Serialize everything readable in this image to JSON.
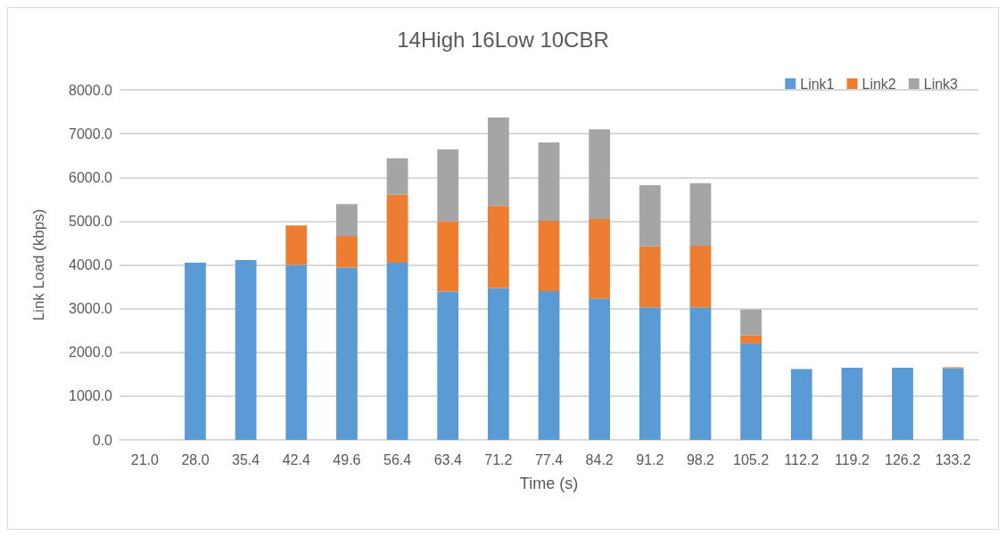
{
  "chart_data": {
    "type": "bar",
    "title": "14High 16Low 10CBR",
    "xlabel": "Time (s)",
    "ylabel": "Link Load (kbps)",
    "categories": [
      "21.0",
      "28.0",
      "35.4",
      "42.4",
      "49.6",
      "56.4",
      "63.4",
      "71.2",
      "77.4",
      "84.2",
      "91.2",
      "98.2",
      "105.2",
      "112.2",
      "119.2",
      "126.2",
      "133.2"
    ],
    "series": [
      {
        "name": "Link1",
        "color": "#5b9bd5",
        "values": [
          0,
          4050,
          4110,
          4000,
          3940,
          4050,
          3390,
          3470,
          3400,
          3230,
          3030,
          3030,
          2200,
          1620,
          1650,
          1650,
          1640
        ]
      },
      {
        "name": "Link2",
        "color": "#ed7d31",
        "values": [
          0,
          0,
          0,
          900,
          720,
          1560,
          1610,
          1880,
          1610,
          1820,
          1390,
          1410,
          190,
          0,
          0,
          0,
          20
        ]
      },
      {
        "name": "Link3",
        "color": "#a5a5a5",
        "values": [
          0,
          0,
          0,
          0,
          730,
          830,
          1640,
          2020,
          1790,
          2050,
          1400,
          1430,
          590,
          0,
          0,
          0,
          0
        ]
      }
    ],
    "stacked": true,
    "ylim": [
      0,
      8000
    ],
    "yticks": [
      {
        "value": 0,
        "label": "0.0"
      },
      {
        "value": 1000,
        "label": "1000.0"
      },
      {
        "value": 2000,
        "label": "2000.0"
      },
      {
        "value": 3000,
        "label": "3000.0"
      },
      {
        "value": 4000,
        "label": "4000.0"
      },
      {
        "value": 5000,
        "label": "5000.0"
      },
      {
        "value": 6000,
        "label": "6000.0"
      },
      {
        "value": 7000,
        "label": "7000.0"
      },
      {
        "value": 8000,
        "label": "8000.0"
      }
    ],
    "grid": "y",
    "legend": "top right"
  }
}
